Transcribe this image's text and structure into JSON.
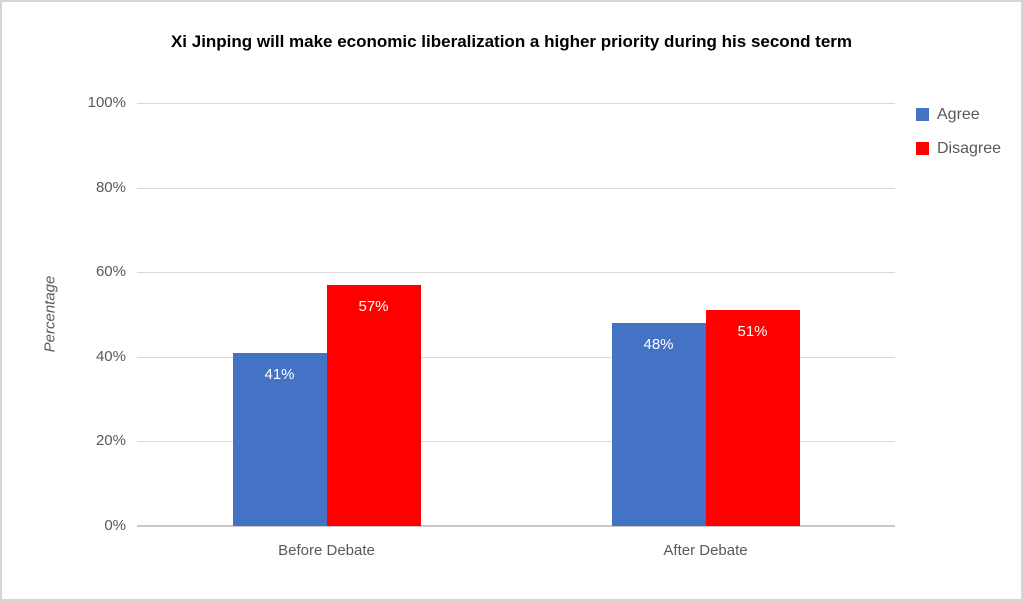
{
  "colors": {
    "background": "#FFFFFF",
    "border": "#D6D6D6",
    "title_text": "#000000",
    "axis_text": "#595959",
    "gridline": "#D9D9D9",
    "axis_line": "#C9C9C9",
    "data_label_text": "#FFFFFF",
    "agree": "#4472C4",
    "disagree": "#FF0000"
  },
  "chart_data": {
    "type": "bar",
    "title": "Xi Jinping will make economic liberalization a higher priority during his second term",
    "xlabel": "",
    "ylabel": "Percentage",
    "categories": [
      "Before Debate",
      "After Debate"
    ],
    "series": [
      {
        "name": "Agree",
        "color": "#4472C4",
        "values": [
          41,
          48
        ],
        "labels": [
          "41%",
          "48%"
        ]
      },
      {
        "name": "Disagree",
        "color": "#FF0000",
        "values": [
          57,
          51
        ],
        "labels": [
          "57%",
          "51%"
        ]
      }
    ],
    "ylim": [
      0,
      100
    ],
    "yticks": [
      0,
      20,
      40,
      60,
      80,
      100
    ],
    "ytick_labels": [
      "0%",
      "20%",
      "40%",
      "60%",
      "80%",
      "100%"
    ],
    "grid": true,
    "data_label_position": "inside-end",
    "legend_position": "right"
  }
}
